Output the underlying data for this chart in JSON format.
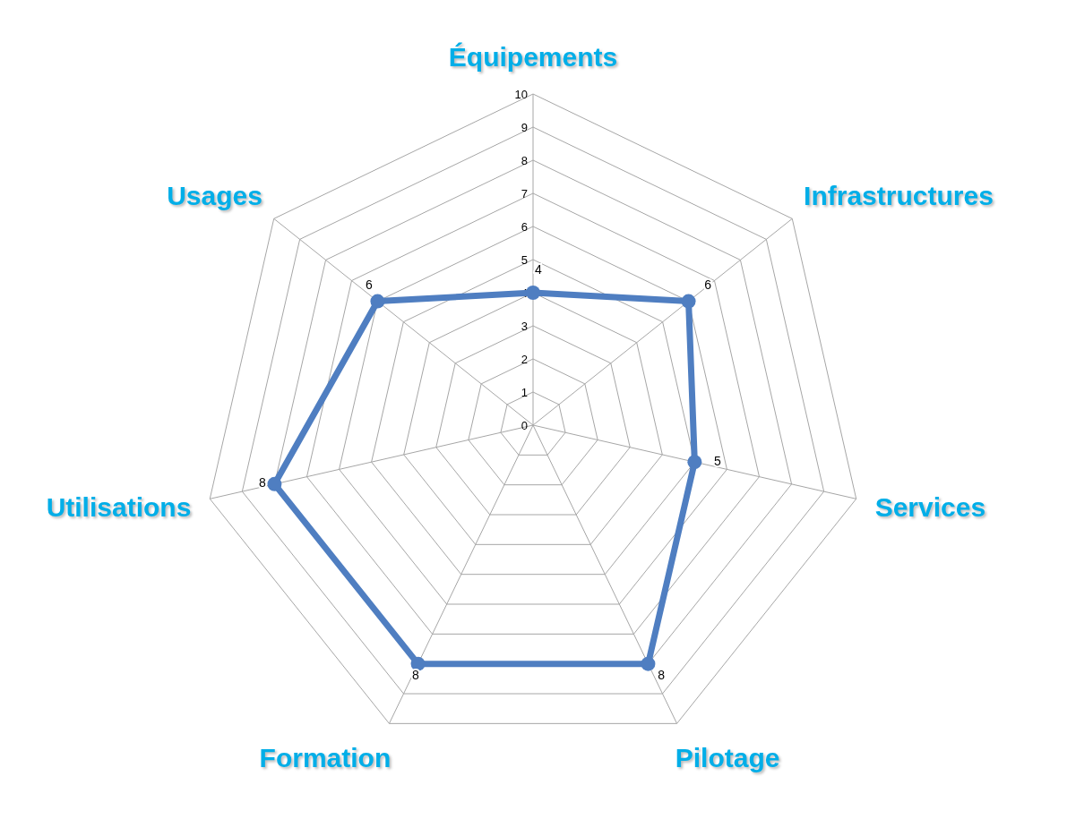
{
  "chart_data": {
    "type": "radar",
    "categories": [
      "Équipements",
      "Infrastructures",
      "Services",
      "Pilotage",
      "Formation",
      "Utilisations",
      "Usages"
    ],
    "series": [
      {
        "color": "#4f7ec1",
        "values": [
          4,
          6,
          5,
          8,
          8,
          8,
          6
        ]
      }
    ],
    "ylim": [
      0,
      10
    ],
    "yticks": [
      0,
      1,
      2,
      3,
      4,
      5,
      6,
      7,
      8,
      9,
      10
    ],
    "grid": true,
    "marker": "circle",
    "data_labels": true
  }
}
